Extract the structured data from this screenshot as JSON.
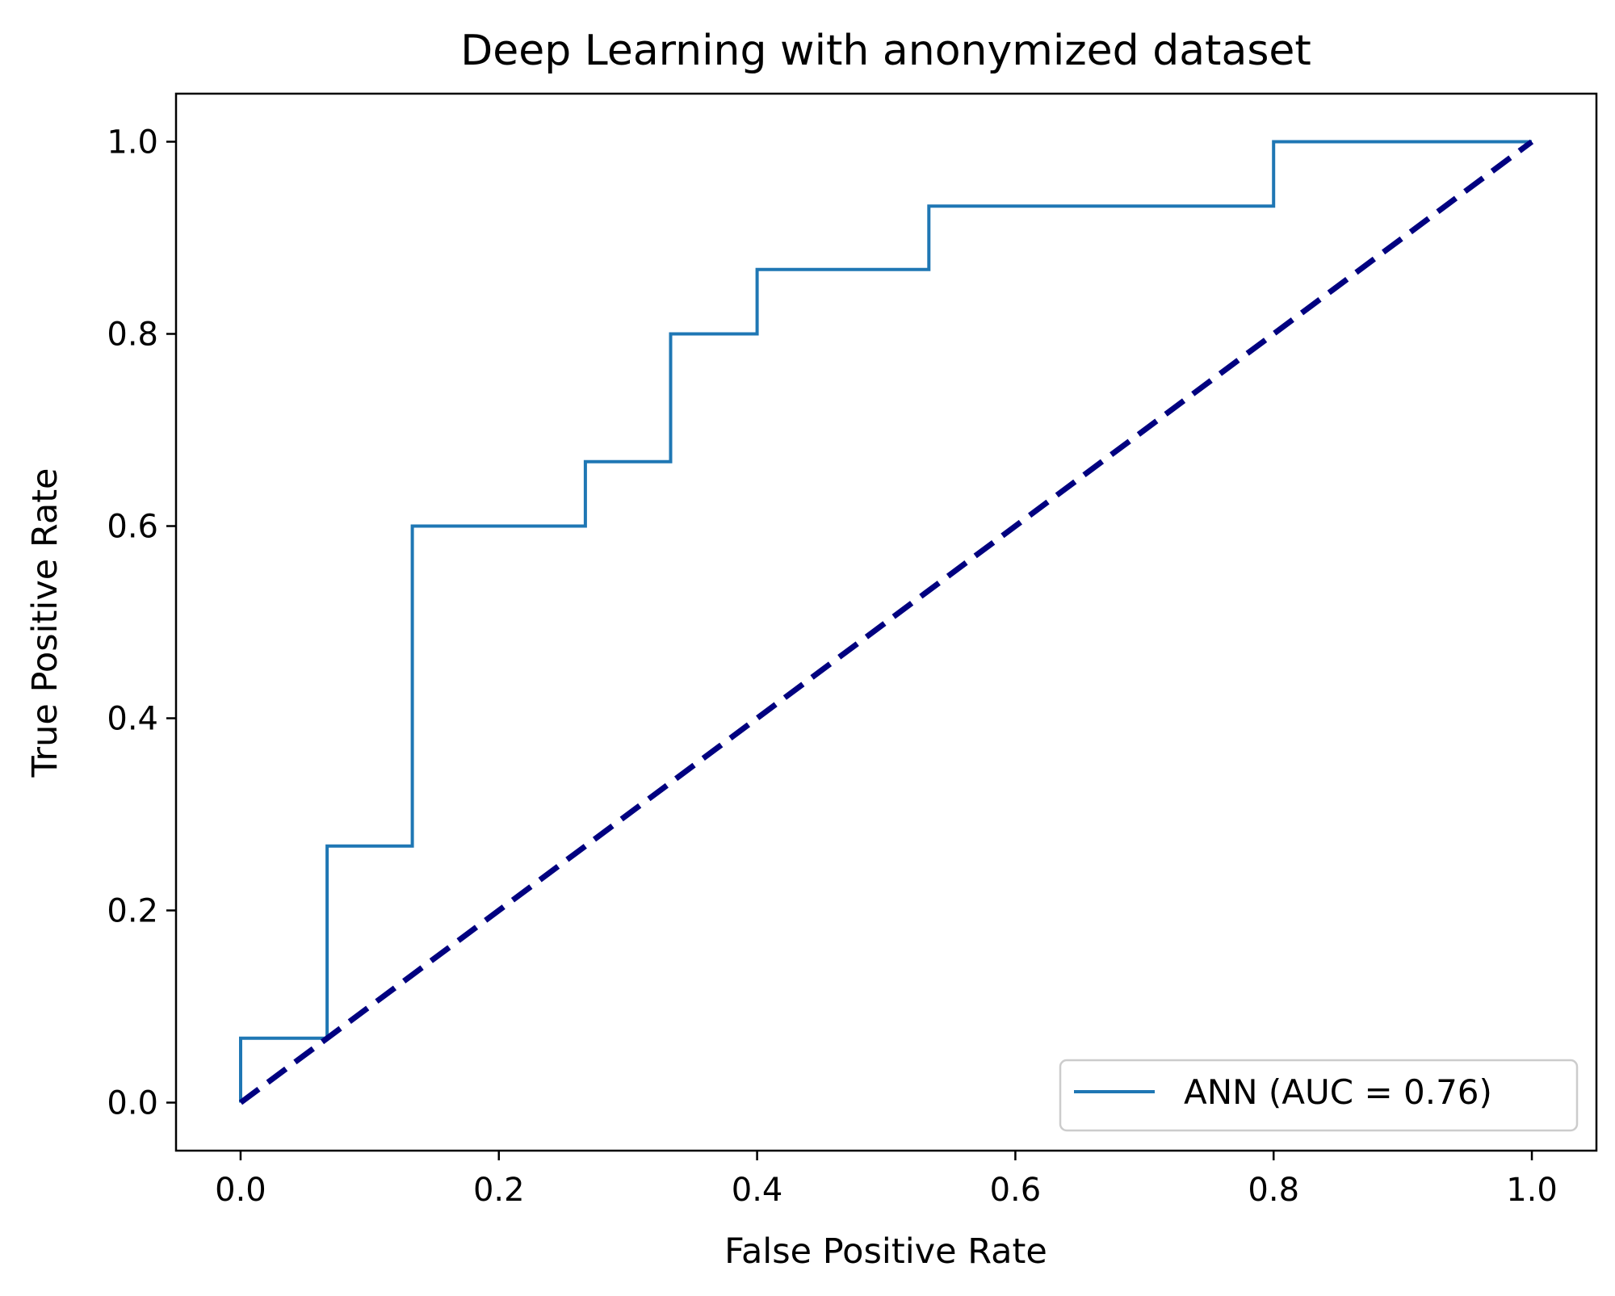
{
  "chart_data": {
    "type": "line",
    "title": "Deep Learning with anonymized dataset",
    "xlabel": "False Positive Rate",
    "ylabel": "True Positive Rate",
    "xlim": [
      -0.05,
      1.05
    ],
    "ylim": [
      -0.05,
      1.05
    ],
    "x_ticks": [
      0.0,
      0.2,
      0.4,
      0.6,
      0.8,
      1.0
    ],
    "x_tick_labels": [
      "0.0",
      "0.2",
      "0.4",
      "0.6",
      "0.8",
      "1.0"
    ],
    "y_ticks": [
      0.0,
      0.2,
      0.4,
      0.6,
      0.8,
      1.0
    ],
    "y_tick_labels": [
      "0.0",
      "0.2",
      "0.4",
      "0.6",
      "0.8",
      "1.0"
    ],
    "grid": false,
    "legend_position": "lower right",
    "series": [
      {
        "name": "ANN  (AUC = 0.76)",
        "color": "#1f77b4",
        "style": "solid",
        "x": [
          0.0,
          0.0,
          0.067,
          0.067,
          0.133,
          0.133,
          0.267,
          0.267,
          0.333,
          0.333,
          0.4,
          0.4,
          0.533,
          0.533,
          0.8,
          0.8,
          1.0
        ],
        "y": [
          0.0,
          0.067,
          0.067,
          0.267,
          0.267,
          0.6,
          0.6,
          0.667,
          0.667,
          0.8,
          0.8,
          0.867,
          0.867,
          0.933,
          0.933,
          1.0,
          1.0
        ]
      },
      {
        "color": "#000080",
        "style": "dashed",
        "x": [
          0.0,
          1.0
        ],
        "y": [
          0.0,
          1.0
        ]
      }
    ]
  }
}
